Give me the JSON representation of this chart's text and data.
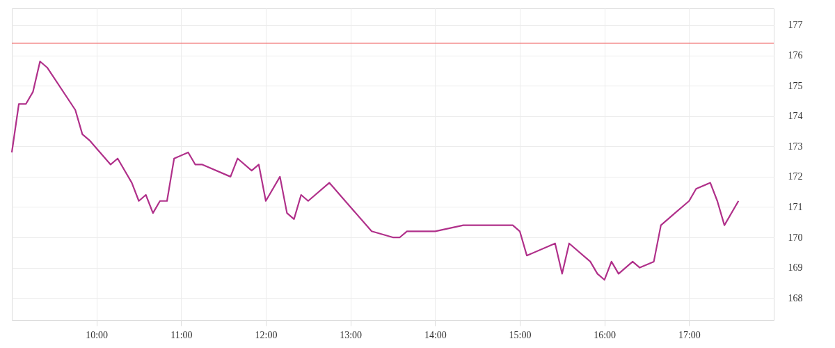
{
  "chart_data": {
    "type": "line",
    "x": [
      9,
      9.083,
      9.167,
      9.25,
      9.333,
      9.417,
      9.75,
      9.833,
      9.917,
      10.167,
      10.25,
      10.417,
      10.5,
      10.583,
      10.667,
      10.75,
      10.833,
      10.917,
      11.083,
      11.167,
      11.25,
      11.583,
      11.667,
      11.833,
      11.917,
      12,
      12.167,
      12.25,
      12.333,
      12.417,
      12.5,
      12.75,
      13,
      13.25,
      13.5,
      13.583,
      13.667,
      14,
      14.333,
      14.917,
      15,
      15.083,
      15.417,
      15.5,
      15.583,
      15.833,
      15.917,
      16,
      16.083,
      16.167,
      16.333,
      16.417,
      16.583,
      16.667,
      16.833,
      17,
      17.083,
      17.25,
      17.333,
      17.417,
      17.583
    ],
    "series": [
      {
        "color": "#b0308a",
        "values": [
          172.8,
          174.4,
          174.4,
          174.8,
          175.8,
          175.6,
          174.2,
          173.4,
          173.2,
          172.4,
          172.6,
          171.8,
          171.2,
          171.4,
          170.8,
          171.2,
          171.2,
          172.6,
          172.8,
          172.4,
          172.4,
          172.0,
          172.6,
          172.2,
          172.4,
          171.2,
          172.0,
          170.8,
          170.6,
          171.4,
          171.2,
          171.8,
          171.0,
          170.2,
          170.0,
          170.0,
          170.2,
          170.2,
          170.4,
          170.4,
          170.2,
          169.4,
          169.8,
          168.8,
          169.8,
          169.2,
          168.8,
          168.6,
          169.2,
          168.8,
          169.2,
          169.0,
          169.2,
          170.4,
          170.8,
          171.2,
          171.6,
          171.8,
          171.2,
          170.4,
          171.2
        ]
      }
    ],
    "xlim": [
      9,
      18
    ],
    "xticks": [
      {
        "value": 10,
        "label": "10:00"
      },
      {
        "value": 11,
        "label": "11:00"
      },
      {
        "value": 12,
        "label": "12:00"
      },
      {
        "value": 13,
        "label": "13:00"
      },
      {
        "value": 14,
        "label": "14:00"
      },
      {
        "value": 15,
        "label": "15:00"
      },
      {
        "value": 16,
        "label": "16:00"
      },
      {
        "value": 17,
        "label": "17:00"
      }
    ],
    "ylim": [
      167.27,
      177.55
    ],
    "yticks": [
      168,
      169,
      170,
      171,
      172,
      173,
      174,
      175,
      176,
      177
    ],
    "ref_lines": [
      {
        "axis": "y",
        "value": 176.4,
        "color": "#f06a6a"
      }
    ],
    "grid": true,
    "line_style": "solid",
    "marker": "none"
  }
}
